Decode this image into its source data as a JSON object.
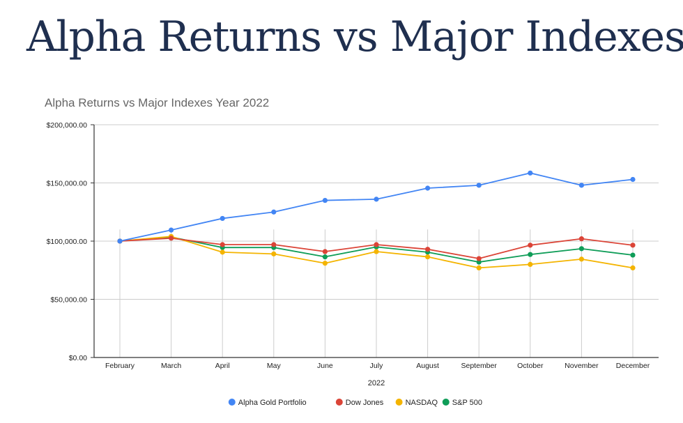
{
  "page": {
    "title": "Alpha Returns vs Major Indexes"
  },
  "chart_data": {
    "type": "line",
    "title": "Alpha Returns vs Major Indexes Year 2022",
    "xlabel": "2022",
    "ylabel": "",
    "ylim": [
      0,
      200000
    ],
    "yticks": [
      0,
      50000,
      100000,
      150000,
      200000
    ],
    "ytick_labels": [
      "$0.00",
      "$50,000.00",
      "$100,000.00",
      "$150,000.00",
      "$200,000.00"
    ],
    "categories": [
      "February",
      "March",
      "April",
      "May",
      "June",
      "July",
      "August",
      "September",
      "October",
      "November",
      "December"
    ],
    "grid": true,
    "legend_position": "bottom",
    "series": [
      {
        "name": "Alpha Gold Portfolio",
        "color": "#4285F4",
        "values": [
          100000,
          109500,
          119500,
          125000,
          135000,
          136000,
          145500,
          148000,
          158500,
          148000,
          153000
        ]
      },
      {
        "name": "Dow Jones",
        "color": "#DB4437",
        "values": [
          100000,
          102500,
          97000,
          97000,
          91000,
          97000,
          93000,
          85000,
          96500,
          102000,
          96500
        ]
      },
      {
        "name": "NASDAQ",
        "color": "#F4B400",
        "values": [
          100000,
          104000,
          90500,
          89000,
          81000,
          91000,
          86500,
          77000,
          80000,
          84500,
          77000
        ]
      },
      {
        "name": "S&P 500",
        "color": "#0F9D58",
        "values": [
          100000,
          103500,
          94500,
          94500,
          86500,
          95000,
          90500,
          82000,
          88500,
          93500,
          88000
        ]
      }
    ]
  }
}
